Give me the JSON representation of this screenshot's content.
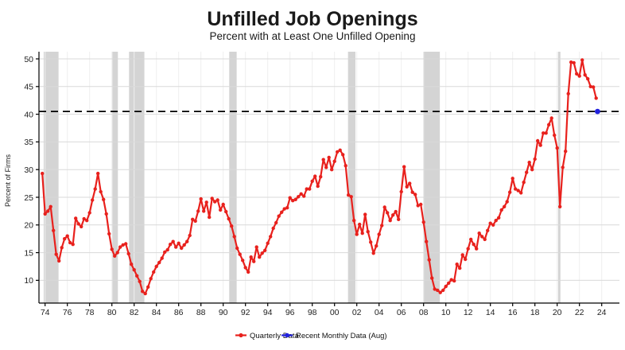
{
  "title": "Unfilled Job Openings",
  "subtitle": "Percent with at Least One Unfilled Opening",
  "legend": {
    "quarterly_label": "Quarterly Data",
    "monthly_label": "Recent Monthly Data (Aug)"
  },
  "colors": {
    "quarterly_line": "#e8211d",
    "monthly_point": "#2222dd",
    "dashed_reference": "#000000",
    "recession_band": "#d4d4d4",
    "h_gridline": "#d9d9d9",
    "v_gridline": "#efefef",
    "axis": "#000000"
  },
  "chart_data": {
    "type": "line",
    "title": "Unfilled Job Openings",
    "subtitle": "Percent with at Least One Unfilled Opening",
    "ylabel": "Percent of Firms",
    "grid": "on",
    "legend_position": "bottom-center",
    "ylim": [
      5.9,
      51.3
    ],
    "xlim_years": [
      1973.4,
      2025.6
    ],
    "y_ticks": [
      10,
      15,
      20,
      25,
      30,
      35,
      40,
      45,
      50
    ],
    "x_tick_years": [
      1974,
      1976,
      1978,
      1980,
      1982,
      1984,
      1986,
      1988,
      1990,
      1992,
      1994,
      1996,
      1998,
      2000,
      2002,
      2004,
      2006,
      2008,
      2010,
      2012,
      2014,
      2016,
      2018,
      2020,
      2022,
      2024
    ],
    "x_tick_labels": [
      "74",
      "76",
      "78",
      "80",
      "82",
      "84",
      "86",
      "88",
      "90",
      "92",
      "94",
      "96",
      "98",
      "00",
      "02",
      "04",
      "06",
      "08",
      "10",
      "12",
      "14",
      "16",
      "18",
      "20",
      "22",
      "24"
    ],
    "dashed_reference_value": 40.5,
    "recessions_year_spans": [
      [
        1973.875,
        1975.21
      ],
      [
        1980.04,
        1980.54
      ],
      [
        1981.54,
        1982.92
      ],
      [
        1990.54,
        1991.21
      ],
      [
        2001.21,
        2001.88
      ],
      [
        2007.96,
        2009.46
      ],
      [
        2020.08,
        2020.29
      ]
    ],
    "quarterly_series": {
      "name": "Quarterly Data",
      "start": "1973Q4",
      "survey_months": [
        "Jan",
        "Apr",
        "Jul",
        "Oct"
      ],
      "values": [
        29.3,
        22.0,
        22.5,
        23.3,
        19.0,
        14.7,
        13.5,
        15.9,
        17.5,
        18.0,
        16.8,
        16.5,
        21.2,
        20.2,
        19.7,
        21.1,
        20.8,
        22.2,
        24.5,
        26.5,
        29.3,
        26.0,
        24.6,
        22.0,
        18.4,
        15.6,
        14.4,
        15.0,
        16.0,
        16.4,
        16.6,
        14.8,
        12.9,
        11.9,
        10.8,
        9.8,
        8.0,
        7.6,
        8.8,
        10.3,
        11.5,
        12.5,
        13.2,
        14.0,
        15.1,
        15.5,
        16.5,
        17.0,
        16.0,
        16.7,
        15.8,
        16.4,
        17.0,
        18.1,
        21.0,
        20.7,
        22.5,
        24.7,
        22.5,
        24.1,
        21.4,
        24.8,
        24.2,
        24.5,
        22.7,
        23.7,
        22.4,
        21.1,
        19.8,
        17.9,
        15.8,
        14.7,
        13.6,
        12.3,
        11.5,
        14.2,
        13.4,
        16.0,
        14.2,
        14.9,
        15.4,
        16.7,
        17.9,
        19.4,
        20.4,
        21.6,
        22.3,
        22.9,
        23.1,
        24.9,
        24.4,
        24.6,
        25.1,
        25.6,
        25.2,
        26.5,
        26.5,
        27.9,
        28.8,
        27.0,
        28.7,
        31.8,
        30.4,
        32.2,
        30.0,
        31.5,
        33.2,
        33.5,
        32.7,
        30.7,
        25.4,
        25.1,
        20.8,
        18.3,
        20.1,
        18.5,
        21.9,
        18.8,
        16.9,
        14.9,
        16.2,
        18.3,
        19.9,
        23.2,
        22.2,
        20.8,
        21.8,
        22.4,
        21.0,
        26.0,
        30.5,
        26.9,
        27.5,
        25.9,
        25.5,
        23.5,
        23.7,
        20.5,
        17.0,
        13.7,
        10.4,
        8.4,
        8.2,
        7.8,
        8.2,
        8.9,
        9.5,
        10.1,
        9.9,
        12.9,
        12.2,
        14.6,
        13.8,
        15.7,
        17.4,
        16.5,
        15.7,
        18.5,
        17.9,
        17.4,
        19.0,
        20.3,
        20.0,
        20.8,
        21.3,
        22.7,
        23.3,
        24.2,
        25.9,
        28.4,
        26.5,
        26.2,
        25.8,
        27.7,
        29.5,
        31.3,
        30.0,
        31.9,
        35.2,
        34.4,
        36.6,
        36.6,
        38.1,
        39.3,
        36.2,
        33.9,
        23.3,
        30.4,
        33.3,
        43.7,
        49.4,
        49.3,
        47.3,
        46.9,
        49.8,
        47.1,
        46.4,
        45.0,
        44.9,
        42.9
      ]
    },
    "monthly_point": {
      "name": "Recent Monthly Data (Aug)",
      "date": "2023-08",
      "value": 40.5
    }
  }
}
